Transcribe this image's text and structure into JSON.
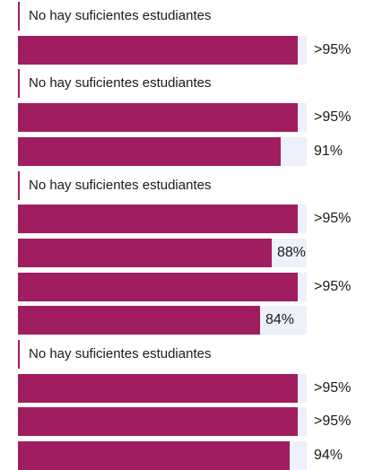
{
  "chart_data": {
    "type": "bar",
    "orientation": "horizontal",
    "xlim": [
      0,
      100
    ],
    "colors": {
      "bar": "#a01e5f",
      "track": "#eef0fa"
    },
    "rows": [
      {
        "kind": "message",
        "text": "No hay suficientes estudiantes"
      },
      {
        "kind": "bar",
        "value": 97,
        "label": ">95%"
      },
      {
        "kind": "message",
        "text": "No hay suficientes estudiantes"
      },
      {
        "kind": "bar",
        "value": 97,
        "label": ">95%"
      },
      {
        "kind": "bar",
        "value": 91,
        "label": "91%"
      },
      {
        "kind": "message",
        "text": "No hay suficientes estudiantes"
      },
      {
        "kind": "bar",
        "value": 97,
        "label": ">95%"
      },
      {
        "kind": "bar",
        "value": 88,
        "label": "88%"
      },
      {
        "kind": "bar",
        "value": 97,
        "label": ">95%"
      },
      {
        "kind": "bar",
        "value": 84,
        "label": "84%"
      },
      {
        "kind": "message",
        "text": "No hay suficientes estudiantes"
      },
      {
        "kind": "bar",
        "value": 97,
        "label": ">95%"
      },
      {
        "kind": "bar",
        "value": 97,
        "label": ">95%"
      },
      {
        "kind": "bar",
        "value": 94,
        "label": "94%"
      }
    ]
  }
}
